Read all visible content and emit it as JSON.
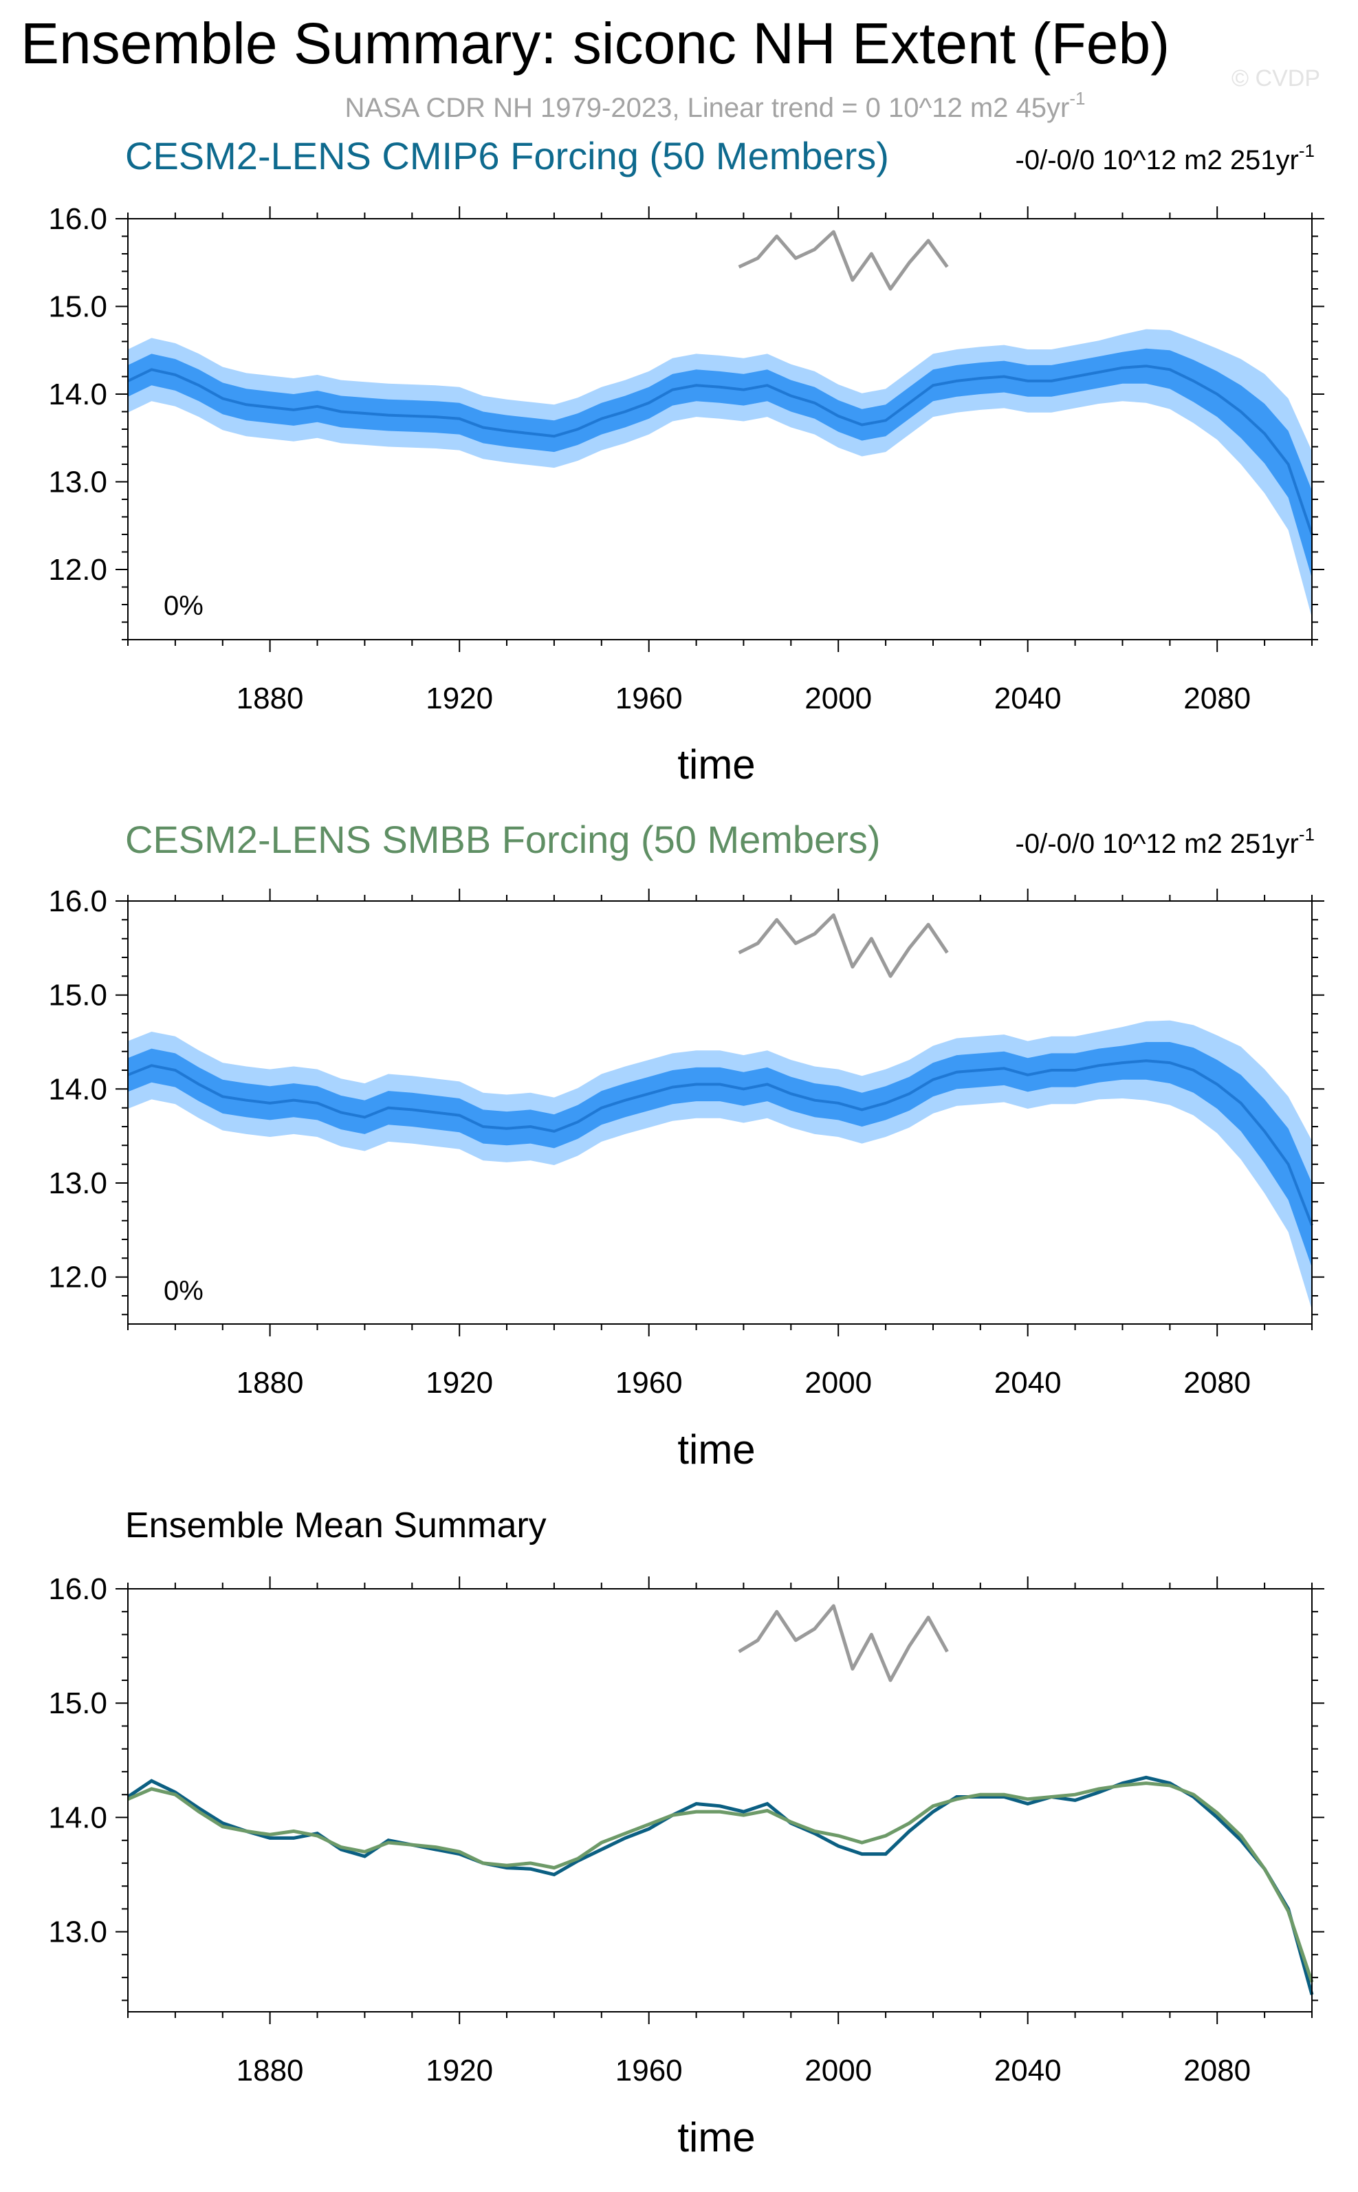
{
  "page": {
    "title": "Ensemble Summary: siconc NH Extent (Feb)",
    "subtitle": "NASA CDR NH 1979-2023, Linear trend = 0 10^12 m2 45yr",
    "subtitle_sup": "-1",
    "watermark": "© CVDP"
  },
  "colors": {
    "cmip6_title": "#0e6a8e",
    "smbb_title": "#5f8f64",
    "band_outer": "#a9d4ff",
    "band_inner": "#3c99f5",
    "mean_line": "#1f78d4",
    "obs": "#9a9a9a",
    "mean_cmip6": "#0b5f82",
    "mean_smbb": "#6d9a68"
  },
  "chart_data": [
    {
      "type": "area",
      "title": "CESM2-LENS CMIP6 Forcing (50 Members)",
      "trend": "-0/-0/0 10^12 m2 251yr",
      "trend_sup": "-1",
      "annotation": "0%",
      "xlabel": "time",
      "xlim": [
        1850,
        2100
      ],
      "ylim": [
        11.2,
        16.0
      ],
      "xticks": [
        "1880",
        "1920",
        "1960",
        "2000",
        "2040",
        "2080"
      ],
      "yticks": [
        "16.0",
        "15.0",
        "14.0",
        "13.0",
        "12.0"
      ],
      "series": [
        {
          "role": "ensemble-mean",
          "x": [
            1850,
            1855,
            1860,
            1865,
            1870,
            1875,
            1880,
            1885,
            1890,
            1895,
            1900,
            1905,
            1910,
            1915,
            1920,
            1925,
            1930,
            1935,
            1940,
            1945,
            1950,
            1955,
            1960,
            1965,
            1970,
            1975,
            1980,
            1985,
            1990,
            1995,
            2000,
            2005,
            2010,
            2015,
            2020,
            2025,
            2030,
            2035,
            2040,
            2045,
            2050,
            2055,
            2060,
            2065,
            2070,
            2075,
            2080,
            2085,
            2090,
            2095,
            2100
          ],
          "values": [
            14.15,
            14.28,
            14.22,
            14.1,
            13.95,
            13.88,
            13.85,
            13.82,
            13.86,
            13.8,
            13.78,
            13.76,
            13.75,
            13.74,
            13.72,
            13.62,
            13.58,
            13.55,
            13.52,
            13.6,
            13.72,
            13.8,
            13.9,
            14.05,
            14.1,
            14.08,
            14.05,
            14.1,
            13.98,
            13.9,
            13.75,
            13.65,
            13.7,
            13.9,
            14.1,
            14.15,
            14.18,
            14.2,
            14.15,
            14.15,
            14.2,
            14.25,
            14.3,
            14.32,
            14.28,
            14.15,
            14.0,
            13.8,
            13.55,
            13.2,
            12.4
          ],
          "inner_spread": [
            0.18,
            0.18,
            0.18,
            0.18,
            0.18,
            0.18,
            0.18,
            0.18,
            0.18,
            0.18,
            0.18,
            0.18,
            0.18,
            0.18,
            0.18,
            0.18,
            0.18,
            0.18,
            0.18,
            0.18,
            0.18,
            0.18,
            0.18,
            0.18,
            0.18,
            0.18,
            0.18,
            0.18,
            0.18,
            0.18,
            0.18,
            0.18,
            0.18,
            0.18,
            0.18,
            0.18,
            0.18,
            0.18,
            0.18,
            0.18,
            0.18,
            0.18,
            0.18,
            0.2,
            0.22,
            0.24,
            0.26,
            0.3,
            0.34,
            0.38,
            0.5
          ],
          "outer_spread": [
            0.36,
            0.36,
            0.36,
            0.36,
            0.36,
            0.36,
            0.36,
            0.36,
            0.36,
            0.36,
            0.36,
            0.36,
            0.36,
            0.36,
            0.36,
            0.36,
            0.36,
            0.36,
            0.36,
            0.36,
            0.36,
            0.36,
            0.36,
            0.36,
            0.36,
            0.36,
            0.36,
            0.36,
            0.36,
            0.36,
            0.36,
            0.36,
            0.36,
            0.36,
            0.36,
            0.36,
            0.36,
            0.36,
            0.36,
            0.36,
            0.36,
            0.36,
            0.38,
            0.42,
            0.45,
            0.48,
            0.52,
            0.6,
            0.68,
            0.75,
            0.95
          ]
        },
        {
          "role": "observations",
          "x": [
            1979,
            1983,
            1987,
            1991,
            1995,
            1999,
            2003,
            2007,
            2011,
            2015,
            2019,
            2023
          ],
          "values": [
            15.45,
            15.55,
            15.8,
            15.55,
            15.65,
            15.85,
            15.3,
            15.6,
            15.2,
            15.5,
            15.75,
            15.45
          ]
        }
      ]
    },
    {
      "type": "area",
      "title": "CESM2-LENS SMBB Forcing (50 Members)",
      "trend": "-0/-0/0 10^12 m2 251yr",
      "trend_sup": "-1",
      "annotation": "0%",
      "xlabel": "time",
      "xlim": [
        1850,
        2100
      ],
      "ylim": [
        11.5,
        16.0
      ],
      "xticks": [
        "1880",
        "1920",
        "1960",
        "2000",
        "2040",
        "2080"
      ],
      "yticks": [
        "16.0",
        "15.0",
        "14.0",
        "13.0",
        "12.0"
      ],
      "series": [
        {
          "role": "ensemble-mean",
          "x": [
            1850,
            1855,
            1860,
            1865,
            1870,
            1875,
            1880,
            1885,
            1890,
            1895,
            1900,
            1905,
            1910,
            1915,
            1920,
            1925,
            1930,
            1935,
            1940,
            1945,
            1950,
            1955,
            1960,
            1965,
            1970,
            1975,
            1980,
            1985,
            1990,
            1995,
            2000,
            2005,
            2010,
            2015,
            2020,
            2025,
            2030,
            2035,
            2040,
            2045,
            2050,
            2055,
            2060,
            2065,
            2070,
            2075,
            2080,
            2085,
            2090,
            2095,
            2100
          ],
          "values": [
            14.15,
            14.25,
            14.2,
            14.05,
            13.92,
            13.88,
            13.85,
            13.88,
            13.85,
            13.75,
            13.7,
            13.8,
            13.78,
            13.75,
            13.72,
            13.6,
            13.58,
            13.6,
            13.55,
            13.65,
            13.8,
            13.88,
            13.95,
            14.02,
            14.05,
            14.05,
            14.0,
            14.05,
            13.95,
            13.88,
            13.85,
            13.78,
            13.85,
            13.95,
            14.1,
            14.18,
            14.2,
            14.22,
            14.15,
            14.2,
            14.2,
            14.25,
            14.28,
            14.3,
            14.28,
            14.2,
            14.05,
            13.85,
            13.55,
            13.2,
            12.55
          ],
          "inner_spread": [
            0.18,
            0.18,
            0.18,
            0.18,
            0.18,
            0.18,
            0.18,
            0.18,
            0.18,
            0.18,
            0.18,
            0.18,
            0.18,
            0.18,
            0.18,
            0.18,
            0.18,
            0.18,
            0.18,
            0.18,
            0.18,
            0.18,
            0.18,
            0.18,
            0.18,
            0.18,
            0.18,
            0.18,
            0.18,
            0.18,
            0.18,
            0.18,
            0.18,
            0.18,
            0.18,
            0.18,
            0.18,
            0.18,
            0.18,
            0.18,
            0.18,
            0.18,
            0.18,
            0.2,
            0.22,
            0.24,
            0.26,
            0.3,
            0.34,
            0.38,
            0.45
          ],
          "outer_spread": [
            0.36,
            0.36,
            0.36,
            0.36,
            0.36,
            0.36,
            0.36,
            0.36,
            0.36,
            0.36,
            0.36,
            0.36,
            0.36,
            0.36,
            0.36,
            0.36,
            0.36,
            0.36,
            0.36,
            0.36,
            0.36,
            0.36,
            0.36,
            0.36,
            0.36,
            0.36,
            0.36,
            0.36,
            0.36,
            0.36,
            0.36,
            0.36,
            0.36,
            0.36,
            0.36,
            0.36,
            0.36,
            0.36,
            0.36,
            0.36,
            0.36,
            0.36,
            0.38,
            0.42,
            0.45,
            0.48,
            0.52,
            0.6,
            0.66,
            0.72,
            0.9
          ]
        },
        {
          "role": "observations",
          "x": [
            1979,
            1983,
            1987,
            1991,
            1995,
            1999,
            2003,
            2007,
            2011,
            2015,
            2019,
            2023
          ],
          "values": [
            15.45,
            15.55,
            15.8,
            15.55,
            15.65,
            15.85,
            15.3,
            15.6,
            15.2,
            15.5,
            15.75,
            15.45
          ]
        }
      ]
    },
    {
      "type": "line",
      "title": "Ensemble Mean Summary",
      "xlabel": "time",
      "xlim": [
        1850,
        2100
      ],
      "ylim": [
        12.3,
        16.0
      ],
      "xticks": [
        "1880",
        "1920",
        "1960",
        "2000",
        "2040",
        "2080"
      ],
      "yticks": [
        "16.0",
        "15.0",
        "14.0",
        "13.0"
      ],
      "series": [
        {
          "role": "mean-cmip6",
          "x": [
            1850,
            1855,
            1860,
            1865,
            1870,
            1875,
            1880,
            1885,
            1890,
            1895,
            1900,
            1905,
            1910,
            1915,
            1920,
            1925,
            1930,
            1935,
            1940,
            1945,
            1950,
            1955,
            1960,
            1965,
            1970,
            1975,
            1980,
            1985,
            1990,
            1995,
            2000,
            2005,
            2010,
            2015,
            2020,
            2025,
            2030,
            2035,
            2040,
            2045,
            2050,
            2055,
            2060,
            2065,
            2070,
            2075,
            2080,
            2085,
            2090,
            2095,
            2100
          ],
          "values": [
            14.18,
            14.32,
            14.22,
            14.08,
            13.95,
            13.88,
            13.82,
            13.82,
            13.86,
            13.72,
            13.66,
            13.8,
            13.76,
            13.72,
            13.68,
            13.6,
            13.56,
            13.55,
            13.5,
            13.62,
            13.72,
            13.82,
            13.9,
            14.02,
            14.12,
            14.1,
            14.05,
            14.12,
            13.95,
            13.86,
            13.75,
            13.68,
            13.68,
            13.88,
            14.05,
            14.18,
            14.18,
            14.18,
            14.12,
            14.18,
            14.15,
            14.22,
            14.3,
            14.35,
            14.3,
            14.18,
            14.0,
            13.8,
            13.55,
            13.2,
            12.45
          ]
        },
        {
          "role": "mean-smbb",
          "x": [
            1850,
            1855,
            1860,
            1865,
            1870,
            1875,
            1880,
            1885,
            1890,
            1895,
            1900,
            1905,
            1910,
            1915,
            1920,
            1925,
            1930,
            1935,
            1940,
            1945,
            1950,
            1955,
            1960,
            1965,
            1970,
            1975,
            1980,
            1985,
            1990,
            1995,
            2000,
            2005,
            2010,
            2015,
            2020,
            2025,
            2030,
            2035,
            2040,
            2045,
            2050,
            2055,
            2060,
            2065,
            2070,
            2075,
            2080,
            2085,
            2090,
            2095,
            2100
          ],
          "values": [
            14.16,
            14.25,
            14.2,
            14.05,
            13.92,
            13.88,
            13.85,
            13.88,
            13.84,
            13.74,
            13.7,
            13.78,
            13.76,
            13.74,
            13.7,
            13.6,
            13.58,
            13.6,
            13.56,
            13.64,
            13.78,
            13.86,
            13.94,
            14.02,
            14.05,
            14.05,
            14.02,
            14.06,
            13.96,
            13.88,
            13.84,
            13.78,
            13.84,
            13.95,
            14.1,
            14.16,
            14.2,
            14.2,
            14.16,
            14.18,
            14.2,
            14.25,
            14.28,
            14.3,
            14.28,
            14.2,
            14.04,
            13.84,
            13.55,
            13.18,
            12.56
          ]
        },
        {
          "role": "observations",
          "x": [
            1979,
            1983,
            1987,
            1991,
            1995,
            1999,
            2003,
            2007,
            2011,
            2015,
            2019,
            2023
          ],
          "values": [
            15.45,
            15.55,
            15.8,
            15.55,
            15.65,
            15.85,
            15.3,
            15.6,
            15.2,
            15.5,
            15.75,
            15.45
          ]
        }
      ]
    }
  ]
}
